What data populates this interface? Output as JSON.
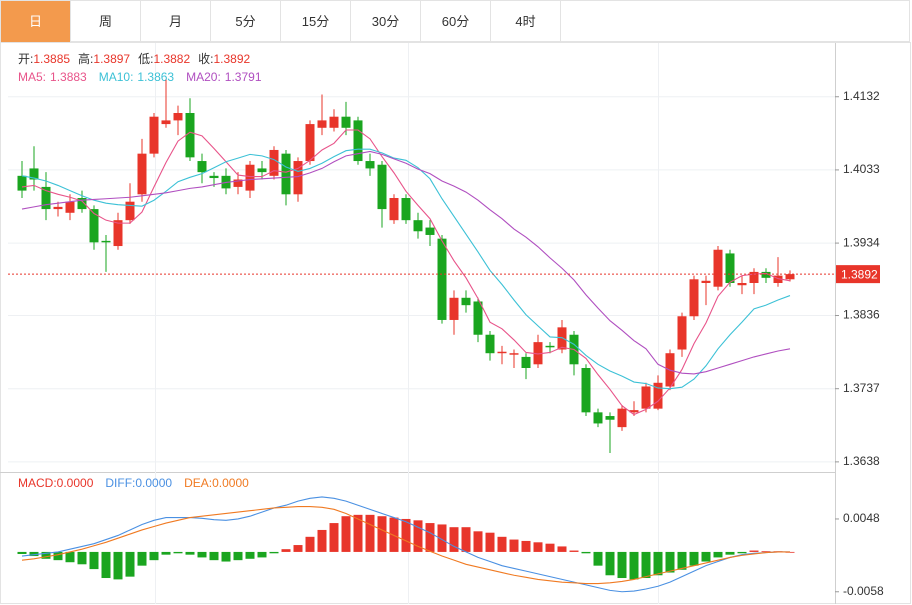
{
  "tabs": [
    "日",
    "周",
    "月",
    "5分",
    "15分",
    "30分",
    "60分",
    "4时"
  ],
  "active_tab": 0,
  "chart_data": [
    {
      "type": "candlestick",
      "ohlc_header": [
        {
          "label": "开:",
          "value": 1.3885
        },
        {
          "label": "高:",
          "value": 1.3897
        },
        {
          "label": "低:",
          "value": 1.3882
        },
        {
          "label": "收:",
          "value": 1.3892
        }
      ],
      "up_color": "#e8352a",
      "down_color": "#1aa51f",
      "open": [
        1.4025,
        1.4035,
        1.401,
        1.398,
        1.3975,
        1.3995,
        1.398,
        1.3937,
        1.393,
        1.3965,
        1.4,
        1.4055,
        1.4095,
        1.41,
        1.411,
        1.4045,
        1.4025,
        1.4025,
        1.401,
        1.4005,
        1.4035,
        1.4025,
        1.4055,
        1.4,
        1.4045,
        1.409,
        1.409,
        1.4105,
        1.41,
        1.4045,
        1.404,
        1.3965,
        1.3995,
        1.3965,
        1.3955,
        1.394,
        1.383,
        1.386,
        1.3855,
        1.381,
        1.3785,
        1.3783,
        1.378,
        1.377,
        1.3795,
        1.379,
        1.381,
        1.3765,
        1.3705,
        1.37,
        1.3685,
        1.3705,
        1.371,
        1.371,
        1.374,
        1.379,
        1.3835,
        1.388,
        1.3875,
        1.392,
        1.3877,
        1.388,
        1.3895,
        1.388,
        1.3885
      ],
      "high": [
        1.4045,
        1.4065,
        1.403,
        1.399,
        1.4,
        1.4005,
        1.3985,
        1.3945,
        1.3975,
        1.4015,
        1.4075,
        1.411,
        1.4155,
        1.412,
        1.413,
        1.4055,
        1.403,
        1.4035,
        1.403,
        1.4045,
        1.4045,
        1.4065,
        1.406,
        1.405,
        1.41,
        1.4135,
        1.4115,
        1.4125,
        1.4105,
        1.4055,
        1.4045,
        1.4,
        1.4,
        1.3975,
        1.3965,
        1.3945,
        1.387,
        1.387,
        1.386,
        1.3815,
        1.3795,
        1.379,
        1.3785,
        1.381,
        1.38,
        1.383,
        1.3815,
        1.377,
        1.371,
        1.3705,
        1.3715,
        1.372,
        1.3745,
        1.3755,
        1.379,
        1.384,
        1.389,
        1.389,
        1.393,
        1.3925,
        1.389,
        1.39,
        1.39,
        1.3915,
        1.3897
      ],
      "low": [
        1.3995,
        1.4005,
        1.3965,
        1.397,
        1.3965,
        1.3975,
        1.3925,
        1.3895,
        1.3925,
        1.396,
        1.399,
        1.405,
        1.409,
        1.408,
        1.4045,
        1.4015,
        1.401,
        1.4,
        1.4,
        1.3995,
        1.402,
        1.402,
        1.3985,
        1.399,
        1.404,
        1.408,
        1.4085,
        1.408,
        1.404,
        1.4025,
        1.3955,
        1.396,
        1.396,
        1.394,
        1.393,
        1.3825,
        1.381,
        1.384,
        1.38,
        1.3775,
        1.377,
        1.3765,
        1.375,
        1.3765,
        1.3785,
        1.3785,
        1.3755,
        1.37,
        1.3685,
        1.365,
        1.368,
        1.37,
        1.3705,
        1.3708,
        1.3735,
        1.378,
        1.383,
        1.385,
        1.387,
        1.3875,
        1.3865,
        1.3865,
        1.388,
        1.3875,
        1.3882
      ],
      "close": [
        1.4005,
        1.402,
        1.398,
        1.3983,
        1.399,
        1.398,
        1.3935,
        1.3935,
        1.3965,
        1.399,
        1.4055,
        1.4105,
        1.41,
        1.411,
        1.405,
        1.403,
        1.4022,
        1.4008,
        1.402,
        1.404,
        1.403,
        1.406,
        1.4,
        1.4045,
        1.4095,
        1.41,
        1.4105,
        1.409,
        1.4045,
        1.4035,
        1.398,
        1.3995,
        1.3965,
        1.395,
        1.3945,
        1.383,
        1.386,
        1.385,
        1.381,
        1.3785,
        1.3787,
        1.3785,
        1.3765,
        1.38,
        1.3793,
        1.382,
        1.377,
        1.3705,
        1.369,
        1.3695,
        1.371,
        1.3708,
        1.374,
        1.3745,
        1.3785,
        1.3835,
        1.3885,
        1.3883,
        1.3925,
        1.388,
        1.388,
        1.3895,
        1.3887,
        1.389,
        1.3892
      ],
      "series": [
        {
          "name": "MA5:",
          "legend_value": 1.3883,
          "color": "#e8548a",
          "values": [
            1.401,
            1.4012,
            1.4005,
            1.4,
            1.3996,
            1.3991,
            1.3974,
            1.3965,
            1.3961,
            1.3961,
            1.3976,
            1.401,
            1.4043,
            1.4072,
            1.4084,
            1.4079,
            1.4062,
            1.4044,
            1.4026,
            1.4024,
            1.4024,
            1.4032,
            1.403,
            1.4035,
            1.4046,
            1.406,
            1.4069,
            1.4087,
            1.4087,
            1.4075,
            1.4051,
            1.4029,
            1.4004,
            1.3985,
            1.3967,
            1.3937,
            1.391,
            1.3887,
            1.3859,
            1.3827,
            1.3818,
            1.3803,
            1.3786,
            1.3784,
            1.3786,
            1.3793,
            1.379,
            1.3778,
            1.3756,
            1.3736,
            1.3714,
            1.3702,
            1.3709,
            1.372,
            1.3738,
            1.3763,
            1.3798,
            1.3826,
            1.3862,
            1.3881,
            1.389,
            1.3892,
            1.3893,
            1.3886,
            1.3883
          ]
        },
        {
          "name": "MA10:",
          "legend_value": 1.3863,
          "color": "#3cc1d6",
          "values": [
            1.4025,
            1.4022,
            1.4018,
            1.4012,
            1.4005,
            1.3998,
            1.3992,
            1.3988,
            1.3986,
            1.3985,
            1.3984,
            1.3992,
            1.4004,
            1.4017,
            1.4023,
            1.4028,
            1.4036,
            1.4044,
            1.4049,
            1.4054,
            1.4052,
            1.4047,
            1.4037,
            1.4031,
            1.4035,
            1.4042,
            1.4051,
            1.4059,
            1.4061,
            1.4061,
            1.4056,
            1.4049,
            1.4046,
            1.4036,
            1.4021,
            1.3994,
            1.397,
            1.3946,
            1.3922,
            1.3897,
            1.3878,
            1.3857,
            1.3837,
            1.3822,
            1.3807,
            1.3806,
            1.3797,
            1.3782,
            1.377,
            1.3761,
            1.3754,
            1.3746,
            1.3744,
            1.3738,
            1.3737,
            1.3739,
            1.375,
            1.3768,
            1.3791,
            1.381,
            1.3827,
            1.3845,
            1.385,
            1.3857,
            1.3863
          ]
        },
        {
          "name": "MA20:",
          "legend_value": 1.3791,
          "color": "#b04fc0",
          "values": [
            1.398,
            1.3983,
            1.3986,
            1.3988,
            1.399,
            1.3992,
            1.3993,
            1.3994,
            1.3995,
            1.3996,
            1.3998,
            1.4,
            1.4002,
            1.4005,
            1.4008,
            1.401,
            1.4013,
            1.4016,
            1.4018,
            1.402,
            1.4021,
            1.4022,
            1.4023,
            1.4024,
            1.4029,
            1.4035,
            1.4044,
            1.4052,
            1.4055,
            1.4058,
            1.4054,
            1.4048,
            1.4042,
            1.4034,
            1.4028,
            1.4018,
            1.4011,
            1.4003,
            1.3992,
            1.3979,
            1.3967,
            1.3953,
            1.3942,
            1.3929,
            1.3914,
            1.39,
            1.3884,
            1.3864,
            1.3846,
            1.3829,
            1.3816,
            1.3802,
            1.3791,
            1.377,
            1.3762,
            1.3758,
            1.3757,
            1.376,
            1.3765,
            1.377,
            1.3775,
            1.378,
            1.3784,
            1.3788,
            1.3791
          ]
        }
      ],
      "current_price": 1.3892,
      "ylim": [
        1.3627,
        1.4202
      ],
      "yticks": [
        1.4132,
        1.4033,
        1.3934,
        1.3836,
        1.3737,
        1.3638
      ],
      "grid": true
    },
    {
      "type": "macd",
      "legend": [
        {
          "label": "MACD:",
          "value": {
            "value": 0,
            "label": "0.0000"
          },
          "color": "#e8352a"
        },
        {
          "label": "DIFF:",
          "value": {
            "value": 0,
            "label": "0.0000"
          },
          "color": "#4a90e2"
        },
        {
          "label": "DEA:",
          "value": {
            "value": 0,
            "label": "0.0000"
          },
          "color": "#f07a22"
        }
      ],
      "histogram": [
        -0.0003,
        -0.0006,
        -0.001,
        -0.0012,
        -0.0015,
        -0.0018,
        -0.0025,
        -0.0038,
        -0.004,
        -0.0036,
        -0.002,
        -0.0012,
        -0.0004,
        -0.0002,
        -0.0004,
        -0.0008,
        -0.0012,
        -0.0014,
        -0.0012,
        -0.001,
        -0.0008,
        -0.0002,
        0.0004,
        0.001,
        0.0022,
        0.0032,
        0.0042,
        0.0052,
        0.0054,
        0.0054,
        0.0052,
        0.005,
        0.0048,
        0.0046,
        0.0042,
        0.004,
        0.0036,
        0.0036,
        0.003,
        0.0028,
        0.0022,
        0.0018,
        0.0016,
        0.0014,
        0.0012,
        0.0008,
        0.0002,
        -0.0002,
        -0.002,
        -0.0034,
        -0.0038,
        -0.004,
        -0.0038,
        -0.0034,
        -0.003,
        -0.0026,
        -0.002,
        -0.0014,
        -0.0008,
        -0.0004,
        -0.0002,
        0.0002,
        0.0001,
        0.0001,
        0.0
      ],
      "series": [
        {
          "name": "DIFF",
          "color": "#4a90e2",
          "values": [
            -0.0006,
            -0.0004,
            -0.0002,
            0.0,
            0.0004,
            0.0008,
            0.0012,
            0.0018,
            0.0024,
            0.0032,
            0.004,
            0.0046,
            0.005,
            0.005,
            0.005,
            0.0049,
            0.0047,
            0.0046,
            0.0048,
            0.0052,
            0.0058,
            0.0064,
            0.0068,
            0.0074,
            0.0078,
            0.008,
            0.0078,
            0.0074,
            0.0068,
            0.0062,
            0.0056,
            0.005,
            0.0044,
            0.0036,
            0.0028,
            0.0018,
            0.0008,
            0.0,
            -0.0008,
            -0.0014,
            -0.002,
            -0.0024,
            -0.0028,
            -0.0032,
            -0.0036,
            -0.004,
            -0.0044,
            -0.0048,
            -0.0052,
            -0.0056,
            -0.0058,
            -0.0057,
            -0.0054,
            -0.005,
            -0.0044,
            -0.0036,
            -0.0028,
            -0.002,
            -0.0014,
            -0.0008,
            -0.0004,
            -0.0002,
            -0.0001,
            0.0,
            0.0
          ]
        },
        {
          "name": "DEA",
          "color": "#f07a22",
          "values": [
            -0.0012,
            -0.001,
            -0.0007,
            -0.0004,
            0.0,
            0.0004,
            0.0009,
            0.0014,
            0.002,
            0.0026,
            0.0032,
            0.0037,
            0.0042,
            0.0046,
            0.005,
            0.0052,
            0.0054,
            0.0056,
            0.0058,
            0.006,
            0.0062,
            0.0064,
            0.0065,
            0.0066,
            0.0066,
            0.0065,
            0.0062,
            0.0056,
            0.0048,
            0.004,
            0.0032,
            0.0024,
            0.0016,
            0.0008,
            0.0001,
            -0.0006,
            -0.0012,
            -0.0018,
            -0.0022,
            -0.0026,
            -0.003,
            -0.0034,
            -0.0037,
            -0.004,
            -0.0042,
            -0.0044,
            -0.0045,
            -0.0046,
            -0.0046,
            -0.0045,
            -0.0043,
            -0.004,
            -0.0036,
            -0.0032,
            -0.0028,
            -0.0024,
            -0.002,
            -0.0016,
            -0.0012,
            -0.0008,
            -0.0005,
            -0.0003,
            -0.0001,
            0.0,
            0.0
          ]
        }
      ],
      "up_color": "#e8352a",
      "down_color": "#1aa51f",
      "ylim": [
        -0.007,
        0.0112
      ],
      "yticks": [
        0.0048,
        -0.0058
      ]
    }
  ]
}
